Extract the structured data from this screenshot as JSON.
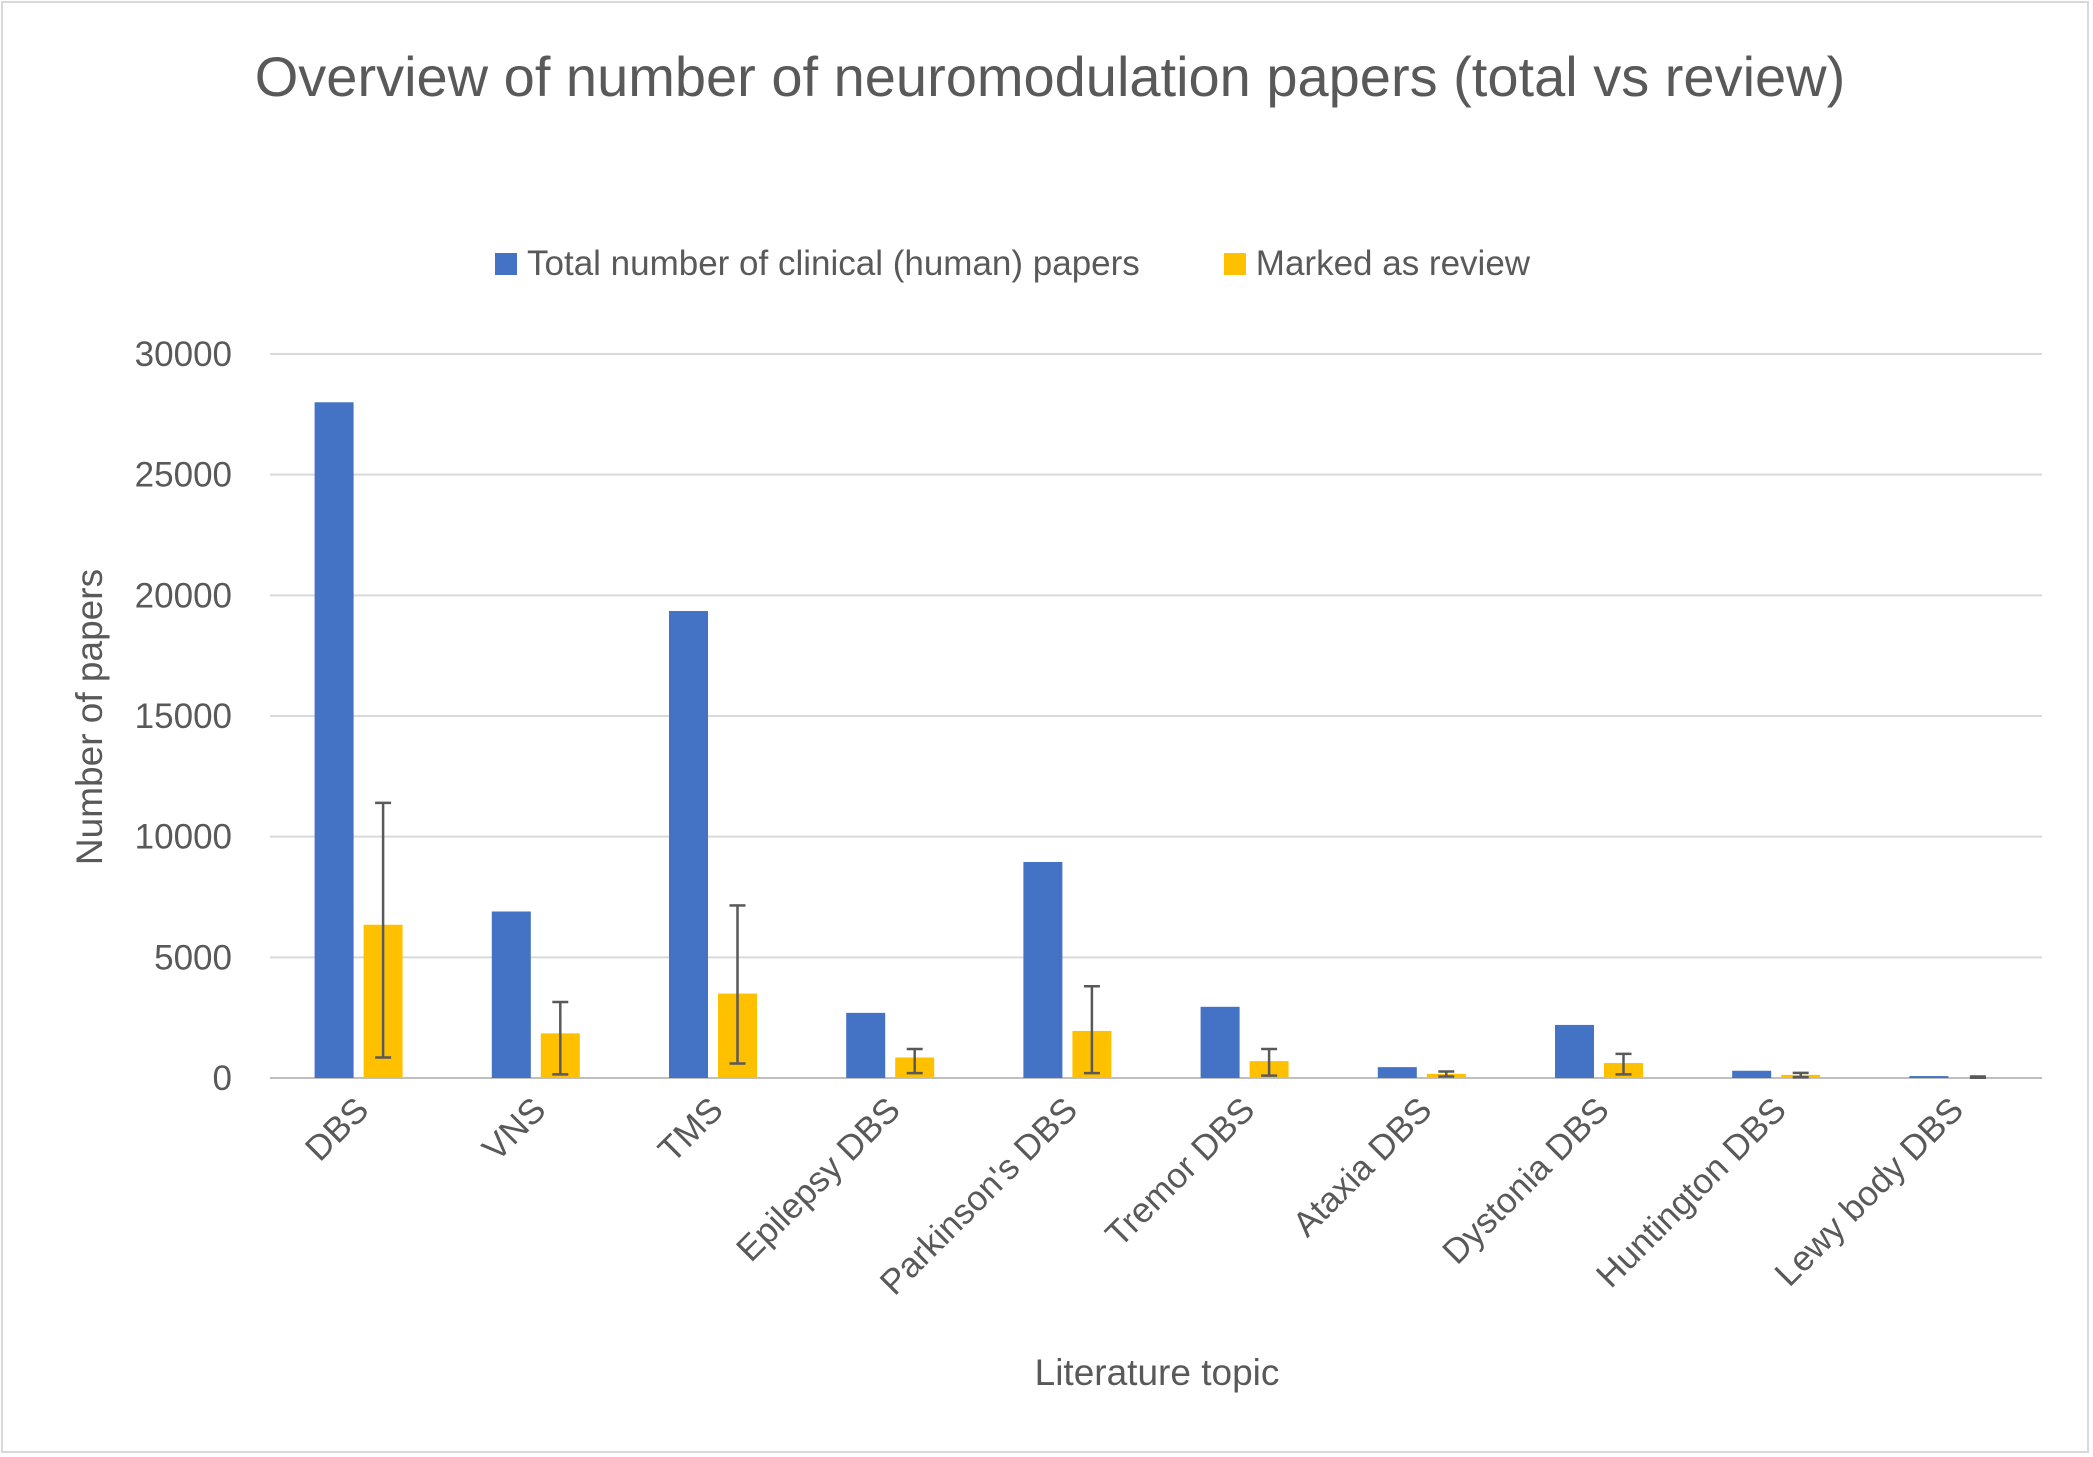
{
  "chart_data": {
    "type": "bar",
    "title": "Overview of number of neuromodulation papers (total vs review)",
    "xlabel": "Literature topic",
    "ylabel": "Number of papers",
    "ylim": [
      0,
      30000
    ],
    "yticks": [
      "0",
      "5000",
      "10000",
      "15000",
      "20000",
      "25000",
      "30000"
    ],
    "grid": true,
    "legend_position": "top",
    "categories": [
      "DBS",
      "VNS",
      "TMS",
      "Epilepsy DBS",
      "Parkinson's DBS",
      "Tremor DBS",
      "Ataxia DBS",
      "Dystonia DBS",
      "Huntington DBS",
      "Lewy body DBS"
    ],
    "series": [
      {
        "name": "Total number of clinical (human) papers",
        "color": "#4472c4",
        "values": [
          28000,
          6900,
          19350,
          2700,
          8950,
          2950,
          450,
          2200,
          300,
          80
        ]
      },
      {
        "name": "Marked as review",
        "color": "#ffc000",
        "values": [
          6350,
          1850,
          3500,
          850,
          1950,
          700,
          170,
          620,
          130,
          40
        ],
        "error_low": [
          850,
          150,
          600,
          200,
          200,
          100,
          60,
          150,
          30,
          10
        ],
        "error_high": [
          11400,
          3150,
          7150,
          1200,
          3800,
          1200,
          270,
          1000,
          210,
          60
        ]
      }
    ]
  }
}
